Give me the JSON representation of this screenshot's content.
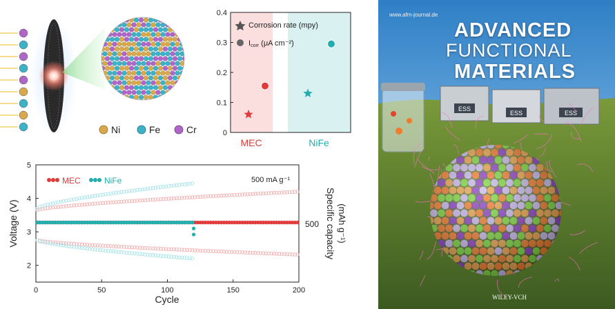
{
  "legend_elements": [
    {
      "label": "Ni",
      "color": "#d8a84a"
    },
    {
      "label": "Fe",
      "color": "#3bb2c8"
    },
    {
      "label": "Cr",
      "color": "#b066c9"
    }
  ],
  "cover": {
    "url": "www.afm-journal.de",
    "title_line1": "ADVANCED",
    "title_line2": "FUNCTIONAL",
    "title_line3": "MATERIALS",
    "ess_label": "ESS",
    "publisher": "WILEY-VCH"
  },
  "chart_data": [
    {
      "type": "scatter",
      "name": "corrosion",
      "ylim": [
        0,
        0.4
      ],
      "yticks": [
        0,
        0.1,
        0.2,
        0.3,
        0.4
      ],
      "categories": [
        "MEC",
        "NiFe"
      ],
      "category_colors": {
        "MEC": "#e03a3a",
        "NiFe": "#23aeae"
      },
      "legend": [
        {
          "label": "Corrosion rate (mpy)",
          "marker": "star"
        },
        {
          "label_main": "I",
          "label_sub": "corr",
          "label_rest": " (μA cm⁻²)",
          "marker": "circle"
        }
      ],
      "series": [
        {
          "name": "Corrosion rate (mpy)",
          "marker": "star",
          "values": [
            0.06,
            0.13
          ]
        },
        {
          "name": "Icorr (μA cm⁻²)",
          "marker": "circle",
          "values": [
            0.155,
            0.295
          ]
        }
      ]
    },
    {
      "type": "line",
      "name": "cycling",
      "xlabel": "Cycle",
      "ylabel": "Voltage (V)",
      "y2label_line1": "Specific capacity",
      "y2label_line2": "(mAh g⁻¹)",
      "y2tick": "500",
      "annotation": "500 mA g⁻¹",
      "xlim": [
        0,
        200
      ],
      "ylim": [
        1.5,
        5
      ],
      "xticks": [
        0,
        50,
        100,
        150,
        200
      ],
      "yticks": [
        2,
        3,
        4,
        5
      ],
      "legend": [
        {
          "label": "MEC",
          "color": "#e03a3a"
        },
        {
          "label": "NiFe",
          "color": "#23aeae"
        }
      ],
      "series": [
        {
          "name": "MEC charge",
          "color": "#f2b0b0",
          "cycles": 200,
          "start": 3.65,
          "end": 4.2
        },
        {
          "name": "MEC discharge",
          "color": "#f2b0b0",
          "cycles": 200,
          "start": 2.75,
          "end": 2.32
        },
        {
          "name": "NiFe charge",
          "color": "#a8e4ea",
          "cycles": 120,
          "start": 3.7,
          "end": 4.45
        },
        {
          "name": "NiFe discharge",
          "color": "#a8e4ea",
          "cycles": 120,
          "start": 2.75,
          "end": 2.2
        },
        {
          "name": "MEC capacity",
          "color": "#e03a3a",
          "cycles": 200,
          "value": 3.28
        },
        {
          "name": "NiFe capacity",
          "color": "#23aeae",
          "cycles": 120,
          "value": 3.28
        },
        {
          "name": "NiFe capacity drop",
          "color": "#23aeae",
          "points": [
            [
              120,
              3.1
            ],
            [
              120,
              2.92
            ]
          ]
        }
      ]
    }
  ]
}
